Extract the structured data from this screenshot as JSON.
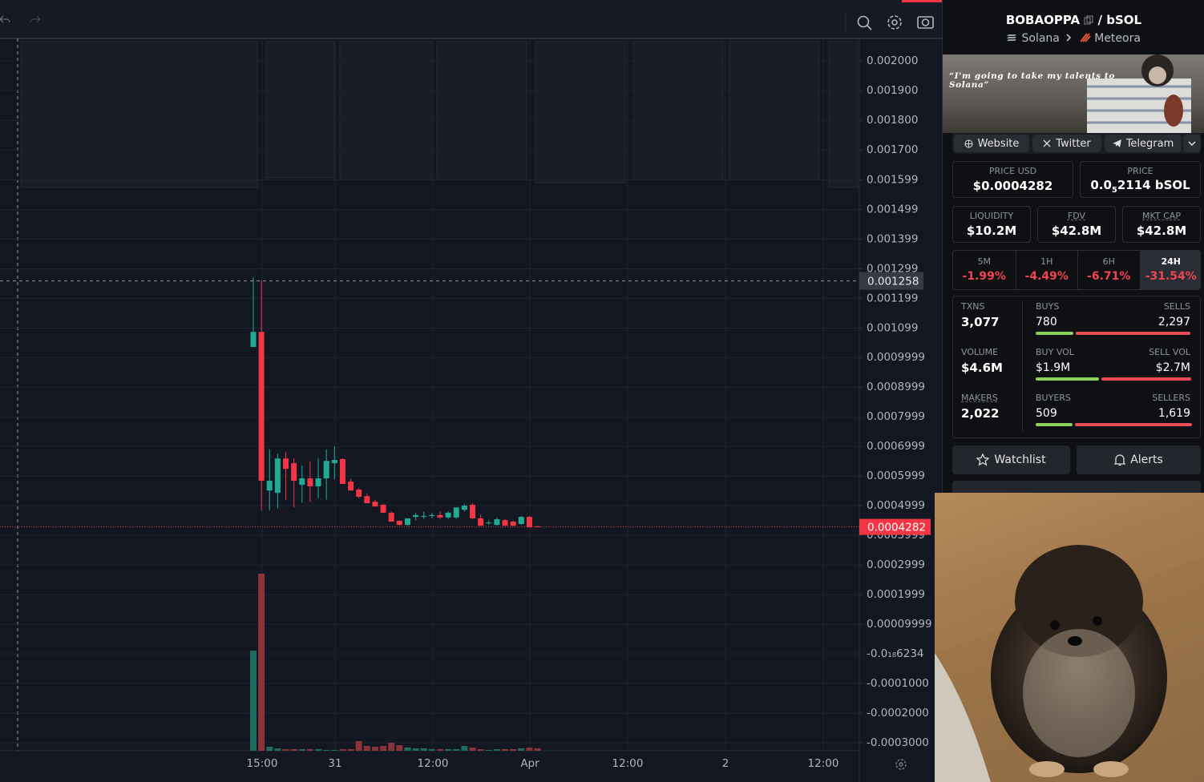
{
  "chart_data": {
    "type": "candlestick",
    "open": [
      0.001035,
      0.001086,
      0.000551,
      0.000543,
      0.000659,
      0.000643,
      0.00057,
      0.000592,
      0.000565,
      0.000592,
      0.000643,
      0.000657,
      0.000581,
      0.000554,
      0.000532,
      0.000513,
      0.000503,
      0.000476,
      0.000449,
      0.000435,
      0.000462,
      0.000462,
      0.000465,
      0.000468,
      0.00046,
      0.00046,
      0.000486,
      0.000503,
      0.000457,
      0.000443,
      0.000435,
      0.000451,
      0.000446,
      0.000438,
      0.000462,
      0.00043
    ],
    "high": [
      0.00127,
      0.00126,
      0.00069,
      0.000675,
      0.00068,
      0.00066,
      0.000635,
      0.00065,
      0.00066,
      0.00069,
      0.0007,
      0.00066,
      0.00059,
      0.00056,
      0.00054,
      0.00052,
      0.000505,
      0.00048,
      0.00045,
      0.000455,
      0.000475,
      0.00048,
      0.000475,
      0.00048,
      0.000482,
      0.00049,
      0.000505,
      0.000508,
      0.00047,
      0.00045,
      0.00046,
      0.000455,
      0.00045,
      0.000465,
      0.000465,
      0.000432
    ],
    "low": [
      0.001035,
      0.000484,
      0.000484,
      0.00049,
      0.00052,
      0.000494,
      0.00051,
      0.000513,
      0.000525,
      0.00052,
      0.00059,
      0.000573,
      0.000551,
      0.000525,
      0.000508,
      0.000497,
      0.000476,
      0.000446,
      0.000432,
      0.000432,
      0.00045,
      0.000455,
      0.000458,
      0.000455,
      0.000455,
      0.000455,
      0.00048,
      0.000455,
      0.000432,
      0.000435,
      0.000432,
      0.000432,
      0.000432,
      0.000435,
      0.000427,
      0.0004282
    ],
    "close": [
      0.001086,
      0.000584,
      0.000584,
      0.000659,
      0.000624,
      0.000584,
      0.000592,
      0.000565,
      0.000592,
      0.000651,
      0.000654,
      0.000573,
      0.000551,
      0.00053,
      0.000508,
      0.000497,
      0.000476,
      0.000446,
      0.000435,
      0.000457,
      0.000468,
      0.000465,
      0.000468,
      0.00046,
      0.000476,
      0.000494,
      0.0005,
      0.000457,
      0.000432,
      0.000443,
      0.000454,
      0.000432,
      0.000432,
      0.000462,
      0.000427,
      0.0004282
    ],
    "volume": [
      125,
      221,
      5,
      3,
      2,
      2,
      2,
      2,
      2,
      1,
      1,
      2,
      2,
      12,
      6,
      5,
      6,
      10,
      7,
      4,
      3,
      3,
      2,
      2,
      2,
      2,
      6,
      4,
      2,
      1,
      2,
      2,
      2,
      3,
      4,
      3
    ],
    "up_color": "#22ab94",
    "down_color": "#f23645",
    "up_volume_color": "#1f6b60",
    "down_volume_color": "#8a3338",
    "ylim": [
      -0.000327,
      0.002076
    ],
    "yticks": [
      {
        "value": 0.002,
        "label": "0.002000"
      },
      {
        "value": 0.0019,
        "label": "0.001900"
      },
      {
        "value": 0.0018,
        "label": "0.001800"
      },
      {
        "value": 0.0017,
        "label": "0.001700"
      },
      {
        "value": 0.001599,
        "label": "0.001599"
      },
      {
        "value": 0.001499,
        "label": "0.001499"
      },
      {
        "value": 0.001399,
        "label": "0.001399"
      },
      {
        "value": 0.001299,
        "label": "0.001299"
      },
      {
        "value": 0.001199,
        "label": "0.001199"
      },
      {
        "value": 0.001099,
        "label": "0.001099"
      },
      {
        "value": 0.0009999,
        "label": "0.0009999"
      },
      {
        "value": 0.0008999,
        "label": "0.0008999"
      },
      {
        "value": 0.0007999,
        "label": "0.0007999"
      },
      {
        "value": 0.0006999,
        "label": "0.0006999"
      },
      {
        "value": 0.0005999,
        "label": "0.0005999"
      },
      {
        "value": 0.0004999,
        "label": "0.0004999"
      },
      {
        "value": 0.0003999,
        "label": "0.0003999"
      },
      {
        "value": 0.0002999,
        "label": "0.0002999"
      },
      {
        "value": 0.0001999,
        "label": "0.0001999"
      },
      {
        "value": 9.999e-05,
        "label": "0.00009999"
      },
      {
        "value": -6.234e-19,
        "label": "-0.0₁₈6234"
      },
      {
        "value": -0.0001,
        "label": "-0.0001000"
      },
      {
        "value": -0.0002,
        "label": "-0.0002000"
      },
      {
        "value": -0.0003,
        "label": "-0.0003000"
      }
    ],
    "x_labels": [
      "15:00",
      "31",
      "12:00",
      "Apr",
      "12:00",
      "2",
      "12:00"
    ],
    "crosshair_price": 0.001258,
    "last_price": 0.0004282,
    "grid": true
  },
  "pair": {
    "base": "BOBAOPPA",
    "quote": "/ bSOL",
    "chain": "Solana",
    "dex": "Meteora"
  },
  "banner_quote": "“I'm going to take my talents to Solana”",
  "links": [
    "Website",
    "Twitter",
    "Telegram"
  ],
  "price_usd": {
    "label": "PRICE USD",
    "value": "$0.0004282"
  },
  "price": {
    "label": "PRICE",
    "prefix": "0.0",
    "sub": "5",
    "rest": "2114 bSOL"
  },
  "metrics": [
    {
      "label": "LIQUIDITY",
      "value": "$10.2M"
    },
    {
      "label": "FDV",
      "value": "$42.8M"
    },
    {
      "label": "MKT CAP",
      "value": "$42.8M"
    }
  ],
  "changes": [
    {
      "label": "5M",
      "value": "-1.99%"
    },
    {
      "label": "1H",
      "value": "-4.49%"
    },
    {
      "label": "6H",
      "value": "-6.71%"
    },
    {
      "label": "24H",
      "value": "-31.54%"
    }
  ],
  "activity": [
    {
      "label": "TXNS",
      "value": "3,077",
      "left_label": "BUYS",
      "left": "780",
      "right_label": "SELLS",
      "right": "2,297"
    },
    {
      "label": "VOLUME",
      "value": "$4.6M",
      "left_label": "BUY VOL",
      "left": "$1.9M",
      "right_label": "SELL VOL",
      "right": "$2.7M"
    },
    {
      "label": "MAKERS",
      "value": "2,022",
      "left_label": "BUYERS",
      "left": "509",
      "right_label": "SELLERS",
      "right": "1,619"
    }
  ],
  "buttons": [
    "Watchlist",
    "Alerts"
  ]
}
